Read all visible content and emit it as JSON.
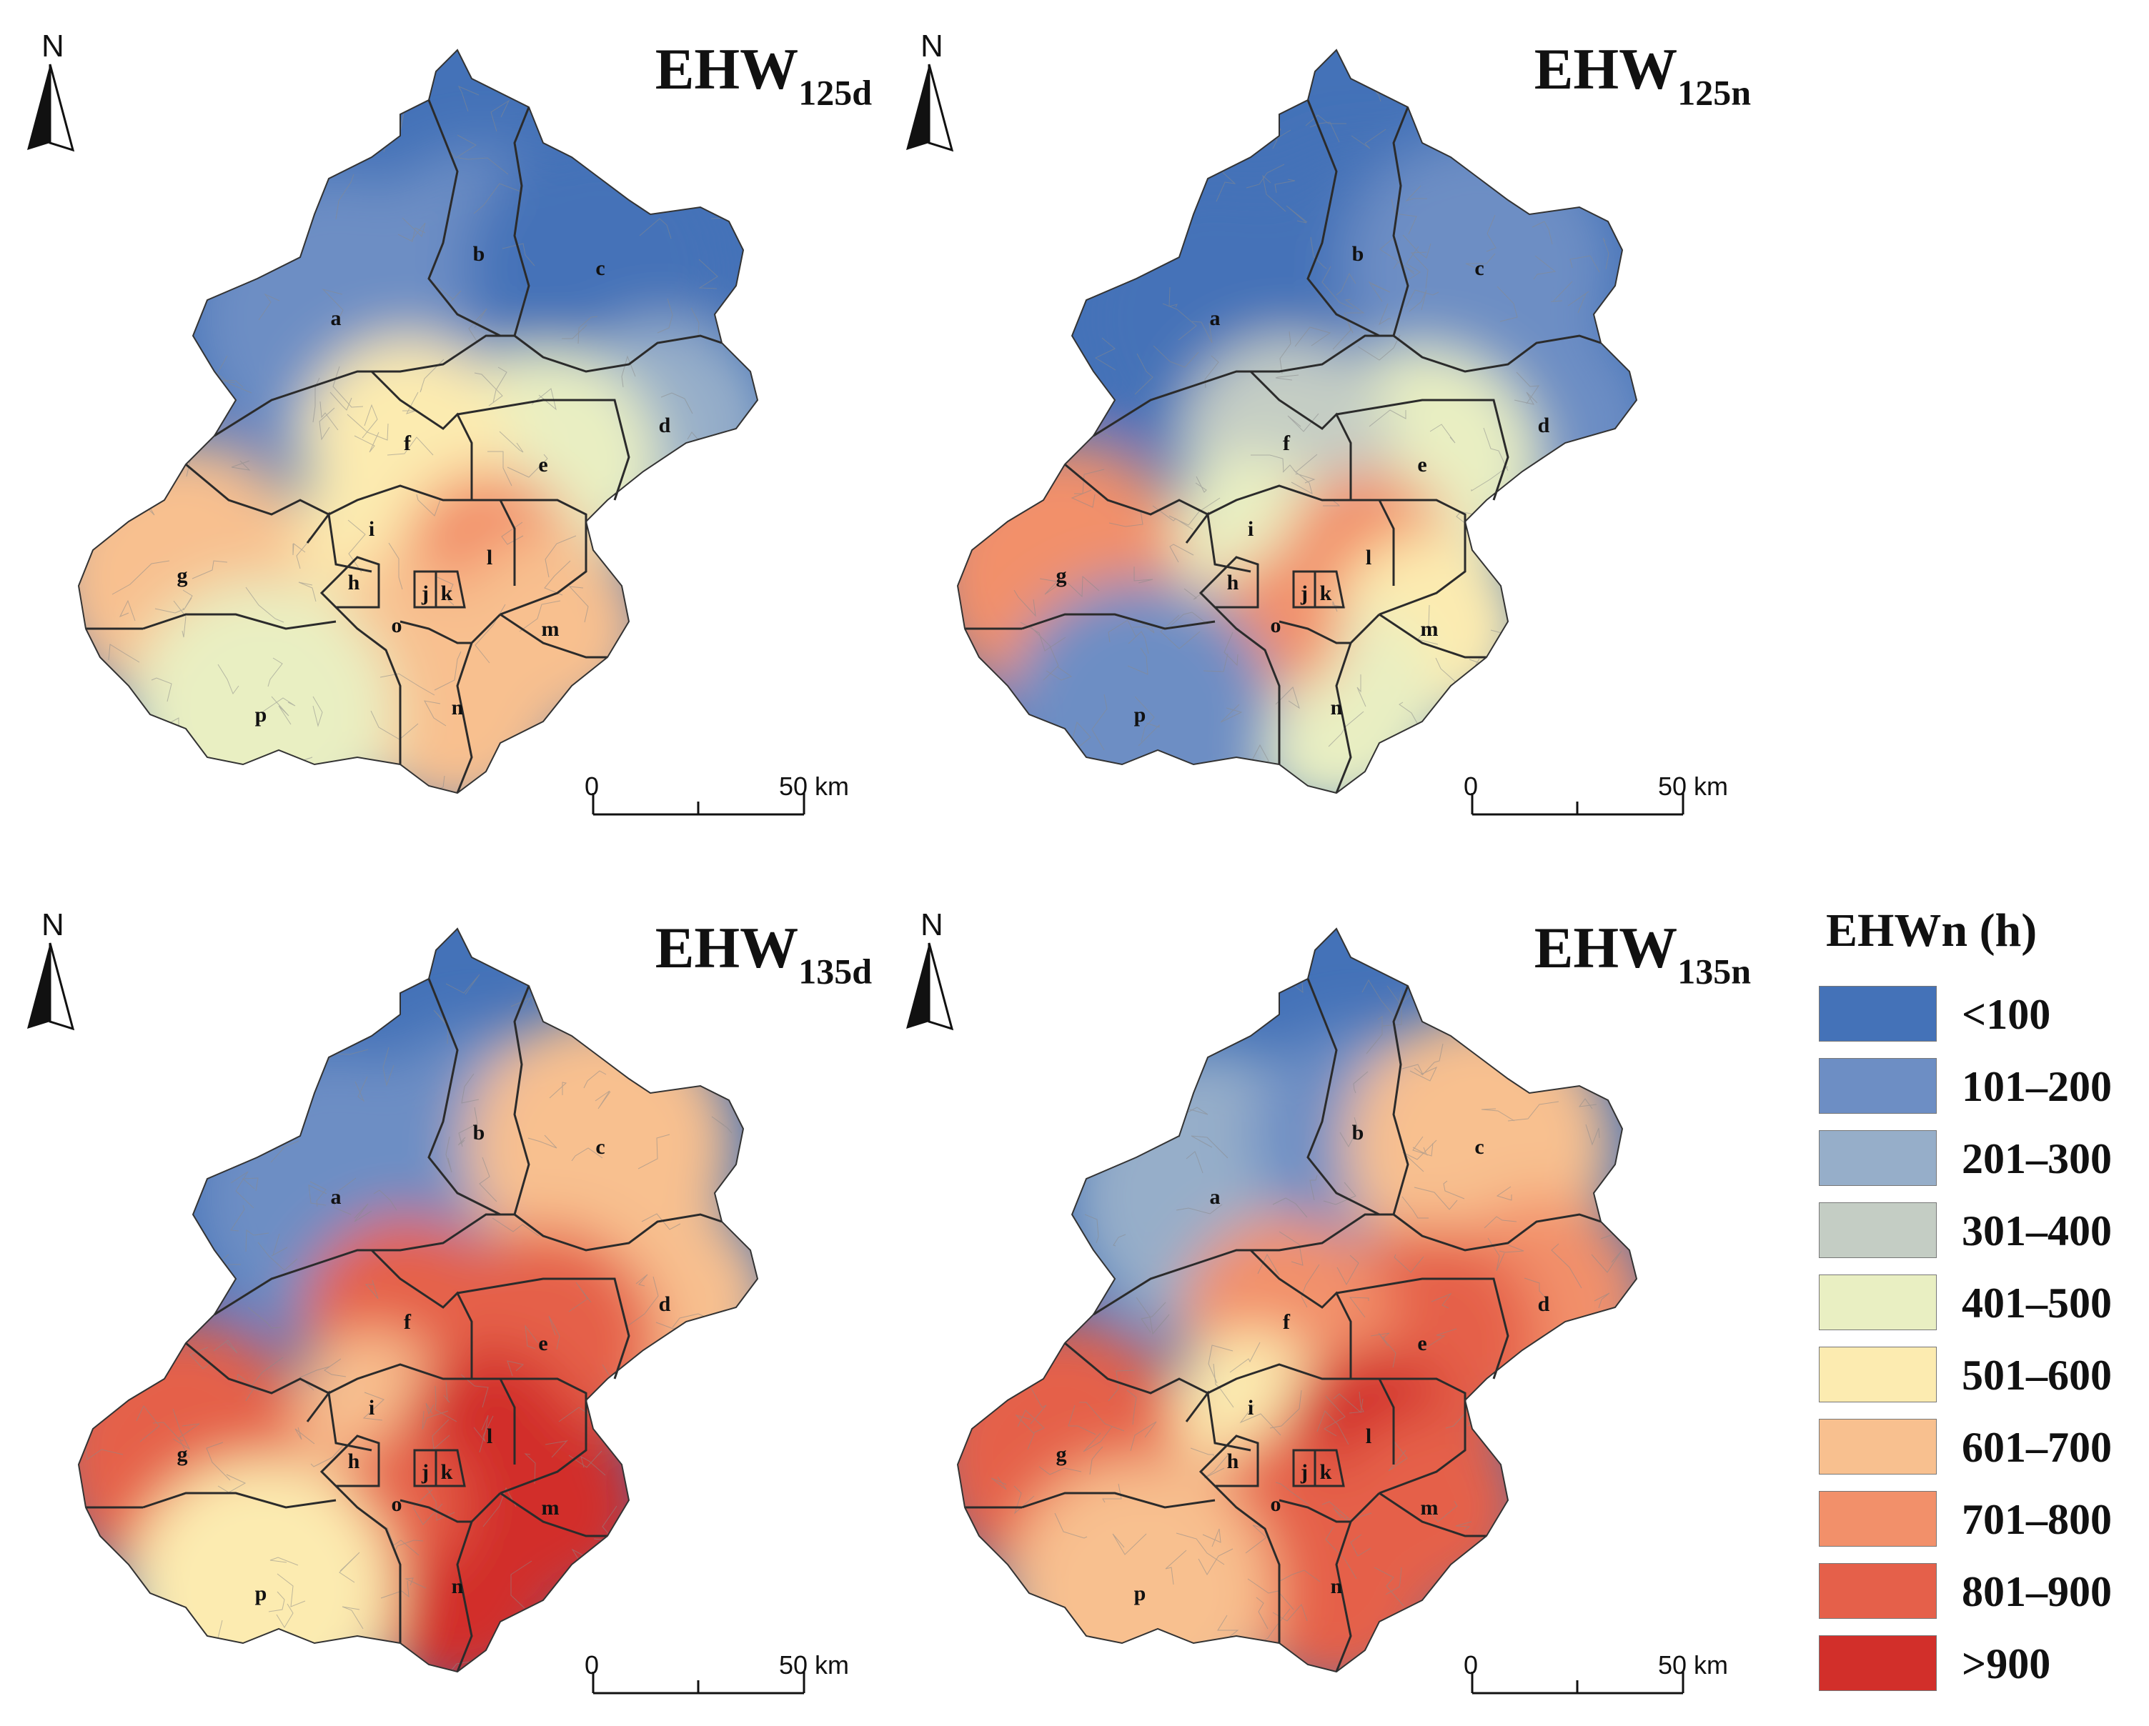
{
  "legend": {
    "title": "EHWn (h)",
    "classes": [
      {
        "label": "<100",
        "color": "#4472b8"
      },
      {
        "label": "101–200",
        "color": "#6d8ec4"
      },
      {
        "label": "201–300",
        "color": "#96aec9"
      },
      {
        "label": "301–400",
        "color": "#c4cdc4"
      },
      {
        "label": "401–500",
        "color": "#e9efc2"
      },
      {
        "label": "501–600",
        "color": "#fcebb0"
      },
      {
        "label": "601–700",
        "color": "#f8c08f"
      },
      {
        "label": "701–800",
        "color": "#f2906a"
      },
      {
        "label": "801–900",
        "color": "#e5604a"
      },
      {
        "label": ">900",
        "color": "#d22f2a"
      }
    ]
  },
  "north_label": "N",
  "scale_bar": {
    "start": "0",
    "end": "50 km"
  },
  "panels": [
    {
      "title_main": "EHW",
      "title_sub": "125d",
      "class_indices": [
        1,
        1,
        0,
        2,
        4,
        5,
        6,
        5,
        5,
        7,
        7,
        7,
        6,
        6,
        6,
        4
      ],
      "outskirts_class": 0
    },
    {
      "title_main": "EHW",
      "title_sub": "125n",
      "class_indices": [
        0,
        0,
        1,
        1,
        4,
        3,
        7,
        5,
        4,
        8,
        8,
        7,
        5,
        4,
        7,
        1
      ],
      "outskirts_class": 0
    },
    {
      "title_main": "EHW",
      "title_sub": "135d",
      "class_indices": [
        1,
        1,
        6,
        6,
        8,
        8,
        8,
        8,
        6,
        9,
        9,
        9,
        9,
        9,
        8,
        5
      ],
      "outskirts_class": 0
    },
    {
      "title_main": "EHW",
      "title_sub": "135n",
      "class_indices": [
        2,
        1,
        6,
        7,
        8,
        7,
        8,
        8,
        5,
        9,
        9,
        9,
        8,
        8,
        8,
        6
      ],
      "outskirts_class": 0
    }
  ],
  "region_labels": [
    "a",
    "b",
    "c",
    "d",
    "e",
    "f",
    "g",
    "h",
    "i",
    "j",
    "k",
    "l",
    "m",
    "n",
    "o",
    "p"
  ]
}
